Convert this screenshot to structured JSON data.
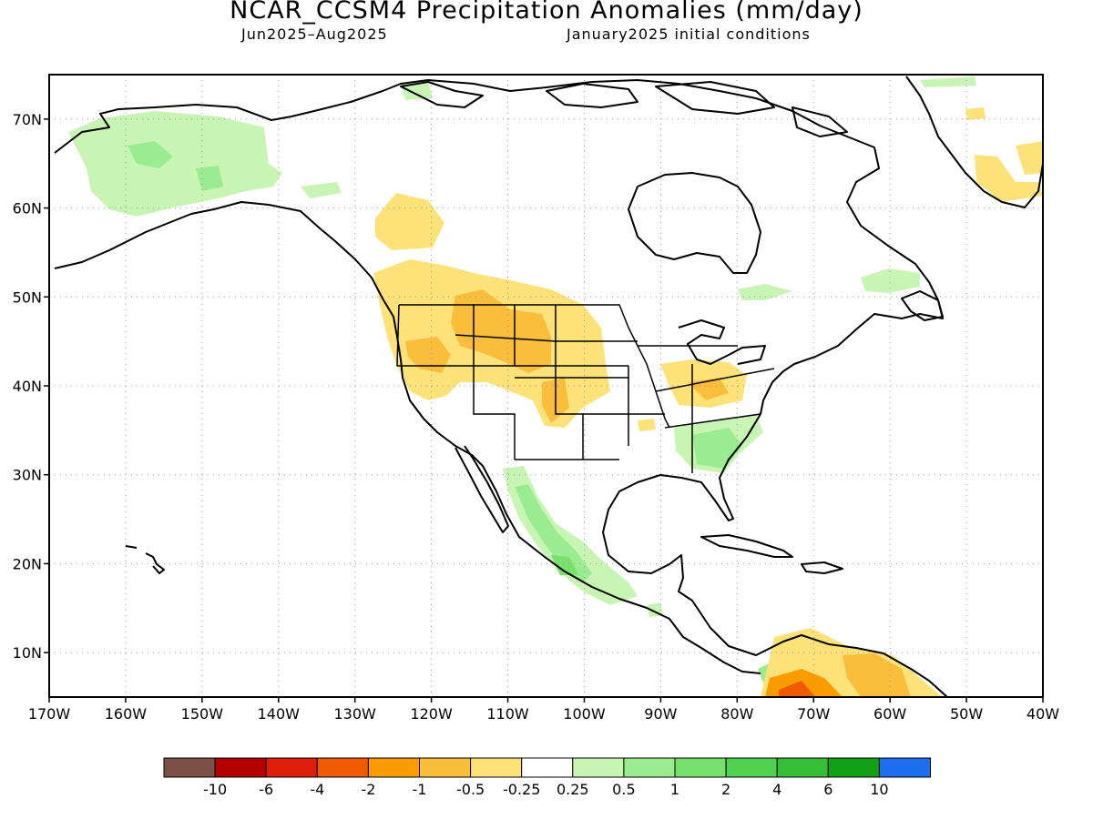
{
  "title": "NCAR_CCSM4 Precipitation Anomalies (mm/day)",
  "subtitle_left": "Jun2025–Aug2025",
  "subtitle_right": "January2025 initial conditions",
  "map": {
    "lon_range": [
      -170,
      -40
    ],
    "lat_range": [
      5,
      75
    ],
    "lon_ticks": [
      {
        "value": -170,
        "label": "170W"
      },
      {
        "value": -160,
        "label": "160W"
      },
      {
        "value": -150,
        "label": "150W"
      },
      {
        "value": -140,
        "label": "140W"
      },
      {
        "value": -130,
        "label": "130W"
      },
      {
        "value": -120,
        "label": "120W"
      },
      {
        "value": -110,
        "label": "110W"
      },
      {
        "value": -100,
        "label": "100W"
      },
      {
        "value": -90,
        "label": "90W"
      },
      {
        "value": -80,
        "label": "80W"
      },
      {
        "value": -70,
        "label": "70W"
      },
      {
        "value": -60,
        "label": "60W"
      },
      {
        "value": -50,
        "label": "50W"
      },
      {
        "value": -40,
        "label": "40W"
      }
    ],
    "lat_ticks": [
      {
        "value": 10,
        "label": "10N"
      },
      {
        "value": 20,
        "label": "20N"
      },
      {
        "value": 30,
        "label": "30N"
      },
      {
        "value": 40,
        "label": "40N"
      },
      {
        "value": 50,
        "label": "50N"
      },
      {
        "value": 60,
        "label": "60N"
      },
      {
        "value": 70,
        "label": "70N"
      }
    ],
    "grid": "dotted"
  },
  "colorbar": {
    "colors": [
      "#7b5147",
      "#b40000",
      "#dc1e0a",
      "#f05a00",
      "#fa9c00",
      "#fbbd3c",
      "#fde27a",
      "#ffffff",
      "#c8f5b4",
      "#9beb91",
      "#78e16e",
      "#50d250",
      "#37be37",
      "#14a014",
      "#1e6ef0"
    ],
    "labels": [
      "-10",
      "-6",
      "-4",
      "-2",
      "-1",
      "-0.5",
      "-0.25",
      "0.25",
      "0.5",
      "1",
      "2",
      "4",
      "6",
      "10"
    ]
  },
  "anomaly_regions": [
    {
      "name": "alaska-wet",
      "level": "0.25",
      "color": "#c8f5b4"
    },
    {
      "name": "pacific-northwest-dry",
      "level": "-0.25",
      "color": "#fde27a"
    },
    {
      "name": "northern-rockies-dry",
      "level": "-0.5",
      "color": "#fbbd3c"
    },
    {
      "name": "central-plains-dry",
      "level": "-0.25",
      "color": "#fde27a"
    },
    {
      "name": "ohio-valley-dry",
      "level": "-0.25",
      "color": "#fde27a"
    },
    {
      "name": "southeast-wet",
      "level": "0.5",
      "color": "#9beb91"
    },
    {
      "name": "western-mexico-wet",
      "level": "0.5",
      "color": "#9beb91"
    },
    {
      "name": "northern-south-america-dry",
      "level": "-2",
      "color": "#f05a00"
    },
    {
      "name": "greenland-dry",
      "level": "-0.25",
      "color": "#fde27a"
    },
    {
      "name": "canada-east-wet",
      "level": "0.25",
      "color": "#c8f5b4"
    }
  ]
}
